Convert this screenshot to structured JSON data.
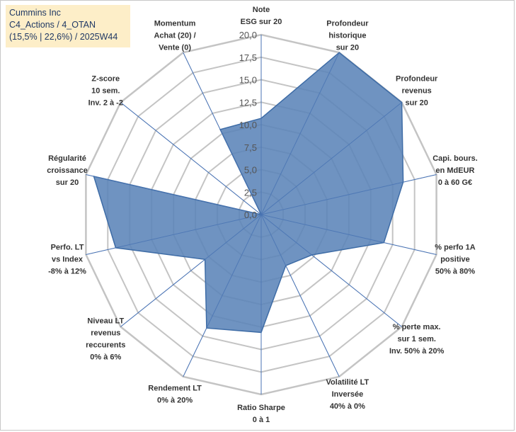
{
  "header": {
    "company": "Cummins Inc",
    "portfolio": "C4_Actions / 4_OTAN",
    "stats": "(15,5% | 22,6%) / 2025W44"
  },
  "colors": {
    "fill": "#5b84b8",
    "stroke": "#3e6ca6",
    "grid": "#c4c4c4",
    "spoke": "#4a74b4",
    "titlebox_bg": "#fdeec8",
    "titlebox_text": "#1f3864"
  },
  "chart_data": {
    "type": "radar",
    "title": "",
    "scale": {
      "min": 0,
      "max": 20,
      "step": 2.5
    },
    "tick_labels": [
      "0,0",
      "2,5",
      "5,0",
      "7,5",
      "10,0",
      "12,5",
      "15,0",
      "17,5",
      "20,0"
    ],
    "axes": [
      {
        "label": [
          "Note",
          "ESG sur 20"
        ],
        "value": 10.7
      },
      {
        "label": [
          "Profondeur",
          "historique",
          "sur 20"
        ],
        "value": 20.0
      },
      {
        "label": [
          "Profondeur",
          "revenus",
          "sur 20"
        ],
        "value": 20.0
      },
      {
        "label": [
          "Capi. bours.",
          "en MdEUR",
          "0 à 60 G€"
        ],
        "value": 16.2
      },
      {
        "label": [
          "% perfo 1A",
          "positive",
          "50% à 80%"
        ],
        "value": 14.0
      },
      {
        "label": [
          "% perte max.",
          "sur 1 sem.",
          "Inv. 50% à 20%"
        ],
        "value": 7.2
      },
      {
        "label": [
          "Volatilité LT",
          "Inversée",
          "40% à 0%"
        ],
        "value": 6.3
      },
      {
        "label": [
          "Ratio Sharpe",
          "0 à 1"
        ],
        "value": 13.1
      },
      {
        "label": [
          "Rendement LT",
          "0% à 20%"
        ],
        "value": 14.0
      },
      {
        "label": [
          "Niveau LT",
          "revenus",
          "reccurents",
          "0% à 6%"
        ],
        "value": 8.0
      },
      {
        "label": [
          "Perfo. LT",
          "vs Index",
          "-8% à 12%"
        ],
        "value": 16.6
      },
      {
        "label": [
          "Régularité",
          "croissance",
          "sur 20"
        ],
        "value": 19.1
      },
      {
        "label": [
          "Z-score",
          "10 sem.",
          "Inv. 2 à -2"
        ],
        "value": 0.0
      },
      {
        "label": [
          "Momentum",
          "Achat (20) /",
          "Vente (0)"
        ],
        "value": 10.5
      }
    ]
  }
}
